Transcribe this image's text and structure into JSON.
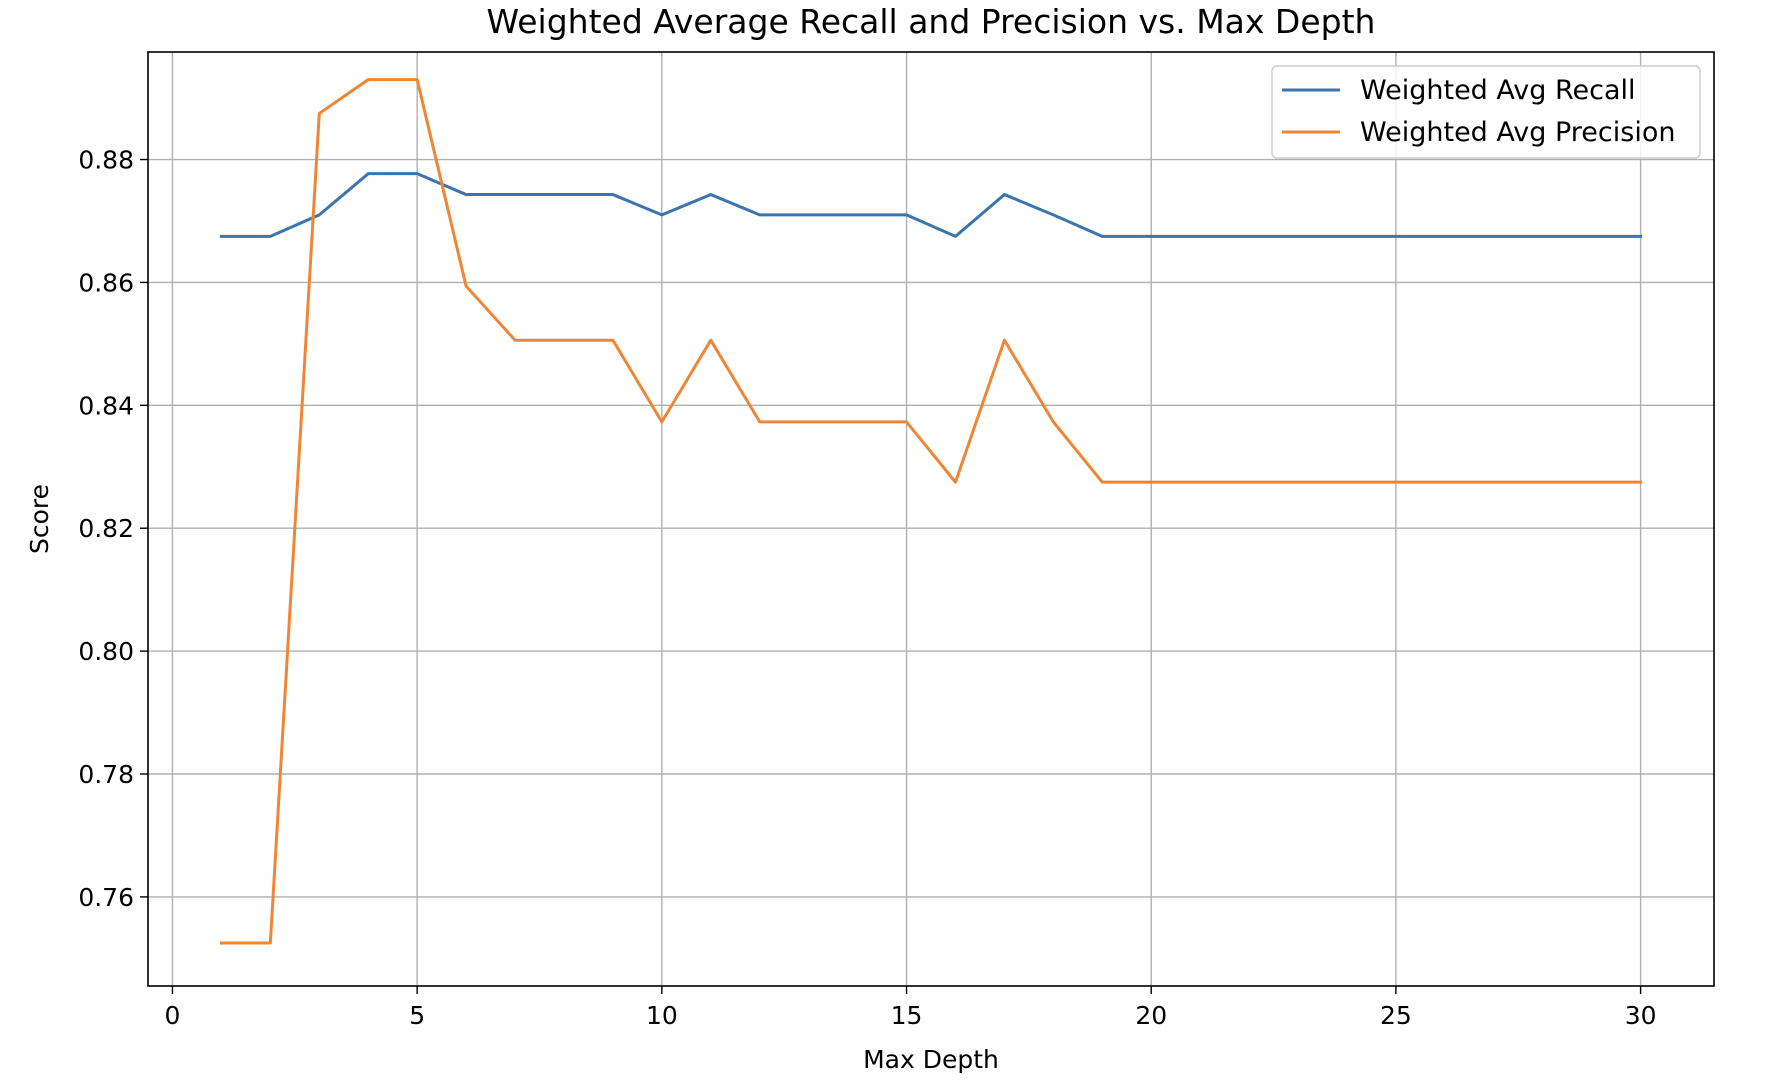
{
  "chart_data": {
    "type": "line",
    "title": "Weighted Average Recall and Precision vs. Max Depth",
    "xlabel": "Max Depth",
    "ylabel": "Score",
    "xlim": [
      -0.5,
      31.5
    ],
    "ylim": [
      0.7455,
      0.8975
    ],
    "x_ticks": [
      0,
      5,
      10,
      15,
      20,
      25,
      30
    ],
    "y_ticks": [
      0.76,
      0.78,
      0.8,
      0.82,
      0.84,
      0.86,
      0.88
    ],
    "x_tick_labels": [
      "0",
      "5",
      "10",
      "15",
      "20",
      "25",
      "30"
    ],
    "y_tick_labels": [
      "0.76",
      "0.78",
      "0.80",
      "0.82",
      "0.84",
      "0.86",
      "0.88"
    ],
    "grid": true,
    "legend_position": "top-right",
    "x": [
      1,
      2,
      3,
      4,
      5,
      6,
      7,
      8,
      9,
      10,
      11,
      12,
      13,
      14,
      15,
      16,
      17,
      18,
      19,
      20,
      21,
      22,
      23,
      24,
      25,
      26,
      27,
      28,
      29,
      30
    ],
    "series": [
      {
        "name": "Weighted Avg Recall",
        "color": "#3a75af",
        "values": [
          0.8675,
          0.8675,
          0.871,
          0.8777,
          0.8777,
          0.8743,
          0.8743,
          0.8743,
          0.8743,
          0.871,
          0.8743,
          0.871,
          0.871,
          0.871,
          0.871,
          0.8675,
          0.8743,
          0.871,
          0.8675,
          0.8675,
          0.8675,
          0.8675,
          0.8675,
          0.8675,
          0.8675,
          0.8675,
          0.8675,
          0.8675,
          0.8675,
          0.8675
        ]
      },
      {
        "name": "Weighted Avg Precision",
        "color": "#ef8636",
        "values": [
          0.7525,
          0.7525,
          0.8875,
          0.893,
          0.893,
          0.8594,
          0.8506,
          0.8506,
          0.8506,
          0.8373,
          0.8506,
          0.8373,
          0.8373,
          0.8373,
          0.8373,
          0.8275,
          0.8506,
          0.8373,
          0.8275,
          0.8275,
          0.8275,
          0.8275,
          0.8275,
          0.8275,
          0.8275,
          0.8275,
          0.8275,
          0.8275,
          0.8275,
          0.8275
        ]
      }
    ]
  }
}
